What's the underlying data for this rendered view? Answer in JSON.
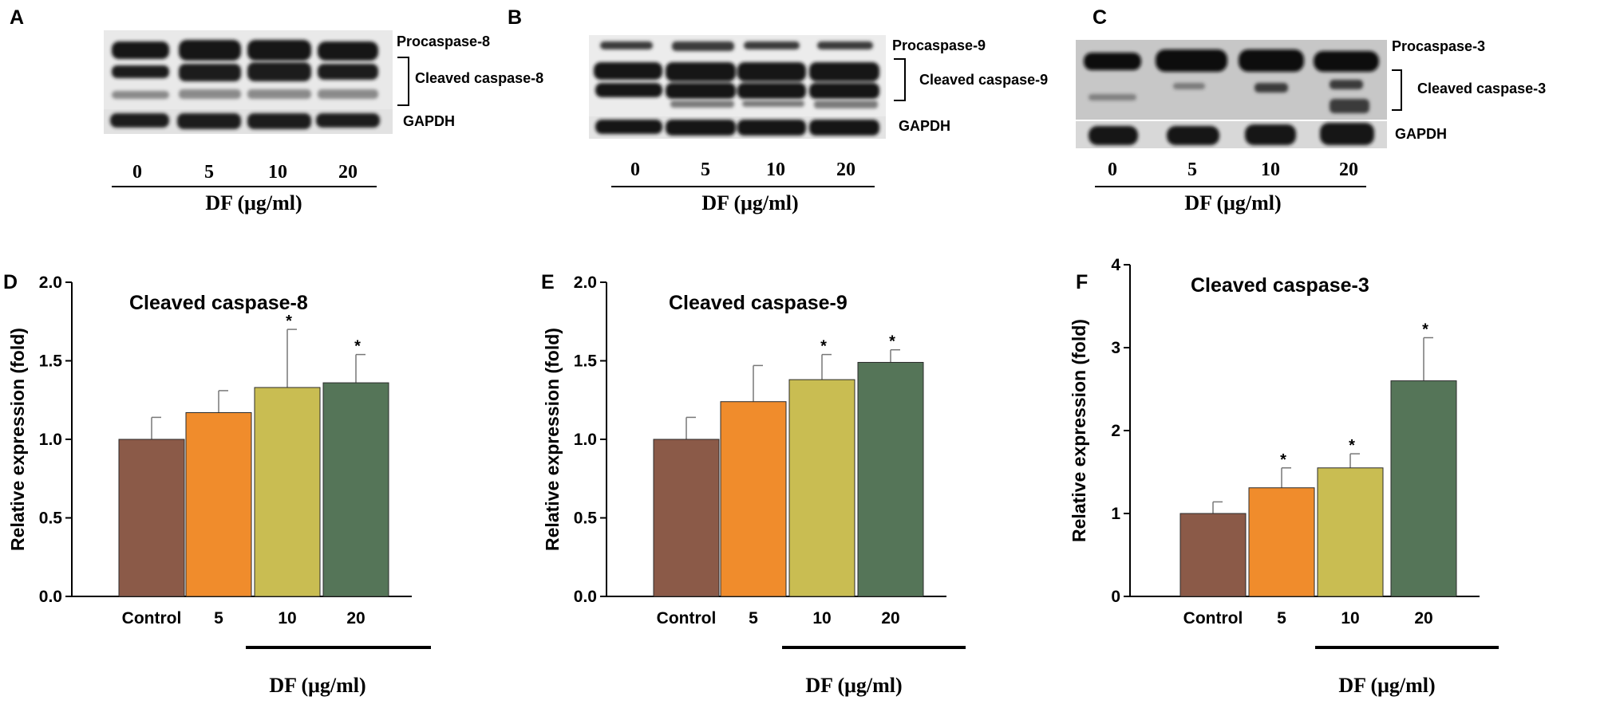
{
  "panel_labels": {
    "a": "A",
    "b": "B",
    "c": "C",
    "d": "D",
    "e": "E",
    "f": "F"
  },
  "blots": [
    {
      "labels": {
        "procaspase": "Procaspase-8",
        "cleaved": "Cleaved caspase-8",
        "gapdh": "GAPDH"
      },
      "doses": [
        "0",
        "5",
        "10",
        "20"
      ],
      "xlabel": "DF (μg/ml)"
    },
    {
      "labels": {
        "procaspase": "Procaspase-9",
        "cleaved": "Cleaved caspase-9",
        "gapdh": "GAPDH"
      },
      "doses": [
        "0",
        "5",
        "10",
        "20"
      ],
      "xlabel": "DF (μg/ml)"
    },
    {
      "labels": {
        "procaspase": "Procaspase-3",
        "cleaved": "Cleaved caspase-3",
        "gapdh": "GAPDH"
      },
      "doses": [
        "0",
        "5",
        "10",
        "20"
      ],
      "xlabel": "DF (μg/ml)"
    }
  ],
  "chart_data": [
    {
      "type": "bar",
      "title": "Cleaved caspase-8",
      "ylabel": "Relative expression (fold)",
      "xlabel": "DF (μg/ml)",
      "categories": [
        "Control",
        "5",
        "10",
        "20"
      ],
      "values": [
        1.0,
        1.17,
        1.33,
        1.36
      ],
      "errors": [
        0.14,
        0.14,
        0.37,
        0.18
      ],
      "significant": [
        false,
        false,
        true,
        true
      ],
      "significance_mark": "*",
      "ylim": [
        0,
        2
      ],
      "yticks": [
        "0.0",
        "0.5",
        "1.0",
        "1.5",
        "2.0"
      ],
      "colors": [
        "#8b5a48",
        "#f08c2c",
        "#c9bd52",
        "#557558"
      ],
      "grid": false
    },
    {
      "type": "bar",
      "title": "Cleaved caspase-9",
      "ylabel": "Relative expression (fold)",
      "xlabel": "DF (μg/ml)",
      "categories": [
        "Control",
        "5",
        "10",
        "20"
      ],
      "values": [
        1.0,
        1.24,
        1.38,
        1.49
      ],
      "errors": [
        0.14,
        0.23,
        0.16,
        0.08
      ],
      "significant": [
        false,
        false,
        true,
        true
      ],
      "significance_mark": "*",
      "ylim": [
        0,
        2
      ],
      "yticks": [
        "0.0",
        "0.5",
        "1.0",
        "1.5",
        "2.0"
      ],
      "colors": [
        "#8b5a48",
        "#f08c2c",
        "#c9bd52",
        "#557558"
      ],
      "grid": false
    },
    {
      "type": "bar",
      "title": "Cleaved caspase-3",
      "ylabel": "Relative expression (fold)",
      "xlabel": "DF (μg/ml)",
      "categories": [
        "Control",
        "5",
        "10",
        "20"
      ],
      "values": [
        1.0,
        1.31,
        1.55,
        2.6
      ],
      "errors": [
        0.14,
        0.24,
        0.17,
        0.52
      ],
      "significant": [
        false,
        true,
        true,
        true
      ],
      "significance_mark": "*",
      "ylim": [
        0,
        4
      ],
      "yticks": [
        "0",
        "1",
        "2",
        "3",
        "4"
      ],
      "colors": [
        "#8b5a48",
        "#f08c2c",
        "#c9bd52",
        "#557558"
      ],
      "grid": false
    }
  ]
}
